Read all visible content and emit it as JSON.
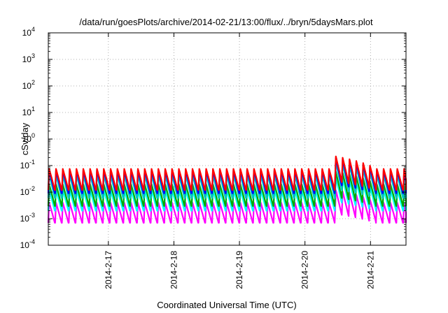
{
  "chart_data": {
    "type": "line",
    "title": "/data/run/goesPlots/archive/2014-02-21/13:00/flux/../bryn/5daysMars.plot",
    "xlabel": "Coordinated Universal Time (UTC)",
    "ylabel": "cSv/day",
    "yscale": "log",
    "ylim": [
      0.0001,
      10000
    ],
    "xlim": [
      "2014-02-16T02:00",
      "2014-02-21T13:00"
    ],
    "grid": true,
    "y_ticks": [
      {
        "base": "10",
        "exp": "-4"
      },
      {
        "base": "10",
        "exp": "-3"
      },
      {
        "base": "10",
        "exp": "-2"
      },
      {
        "base": "10",
        "exp": "-1"
      },
      {
        "base": "10",
        "exp": "0"
      },
      {
        "base": "10",
        "exp": "1"
      },
      {
        "base": "10",
        "exp": "2"
      },
      {
        "base": "10",
        "exp": "3"
      },
      {
        "base": "10",
        "exp": "4"
      }
    ],
    "x_ticks": [
      {
        "date": "2014-02-17T00:00",
        "label": "2014-2-17"
      },
      {
        "date": "2014-02-18T00:00",
        "label": "2014-2-18"
      },
      {
        "date": "2014-02-19T00:00",
        "label": "2014-2-19"
      },
      {
        "date": "2014-02-20T00:00",
        "label": "2014-2-20"
      },
      {
        "date": "2014-02-21T00:00",
        "label": "2014-2-21"
      }
    ],
    "orbit_period_hours": 2.5,
    "spike": {
      "start": "2014-02-20T10:00",
      "end": "2014-02-21T02:00",
      "peak": 0.25
    },
    "series": [
      {
        "color": "#ff0000",
        "peak": 0.075,
        "trough": 0.012
      },
      {
        "color": "#0000ff",
        "peak": 0.065,
        "trough": 0.009
      },
      {
        "color": "#00c8c8",
        "peak": 0.045,
        "trough": 0.006
      },
      {
        "color": "#00aa00",
        "peak": 0.02,
        "trough": 0.003
      },
      {
        "color": "#00ffff",
        "peak": 0.012,
        "trough": 0.002
      },
      {
        "color": "#ff00ff",
        "peak": 0.004,
        "trough": 0.0007
      }
    ]
  }
}
